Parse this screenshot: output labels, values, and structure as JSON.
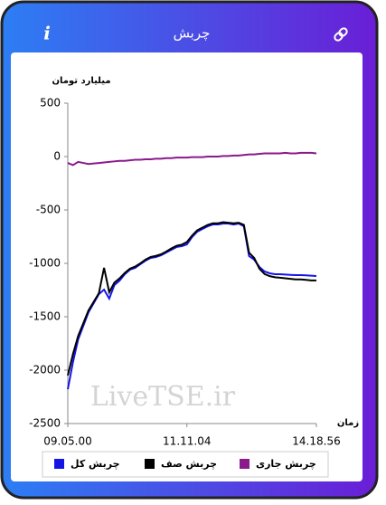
{
  "header": {
    "title": "چربش",
    "info_icon": "i"
  },
  "chart_data": {
    "type": "line",
    "y_label": "میلیارد تومان",
    "x_label": "زمان",
    "watermark": "LiveTSE.ir",
    "categories": [
      "09.05.00",
      null,
      null,
      null,
      null,
      null,
      null,
      null,
      null,
      null,
      null,
      null,
      null,
      null,
      null,
      null,
      null,
      null,
      null,
      null,
      null,
      null,
      null,
      "11.11.04",
      null,
      null,
      null,
      null,
      null,
      null,
      null,
      null,
      null,
      null,
      null,
      null,
      null,
      null,
      null,
      null,
      null,
      null,
      null,
      null,
      null,
      null,
      null,
      null,
      "14.18.56"
    ],
    "series": [
      {
        "name": "چربش کل",
        "color": "#1414e6",
        "values": [
          -2178,
          -1924,
          -1712,
          -1585,
          -1458,
          -1373,
          -1288,
          -1246,
          -1330,
          -1203,
          -1161,
          -1102,
          -1059,
          -1042,
          -1008,
          -975,
          -949,
          -941,
          -924,
          -898,
          -873,
          -847,
          -839,
          -822,
          -754,
          -703,
          -678,
          -653,
          -636,
          -636,
          -627,
          -627,
          -636,
          -627,
          -653,
          -932,
          -966,
          -1034,
          -1076,
          -1093,
          -1102,
          -1102,
          -1105,
          -1108,
          -1110,
          -1110,
          -1112,
          -1115,
          -1119
        ]
      },
      {
        "name": "چربش صف",
        "color": "#000000",
        "values": [
          -2050,
          -1850,
          -1680,
          -1560,
          -1440,
          -1360,
          -1280,
          -1042,
          -1270,
          -1180,
          -1140,
          -1090,
          -1050,
          -1030,
          -1000,
          -965,
          -940,
          -930,
          -915,
          -890,
          -860,
          -835,
          -825,
          -800,
          -740,
          -690,
          -665,
          -640,
          -625,
          -625,
          -615,
          -620,
          -625,
          -620,
          -640,
          -900,
          -950,
          -1050,
          -1100,
          -1120,
          -1130,
          -1135,
          -1140,
          -1145,
          -1150,
          -1150,
          -1155,
          -1160,
          -1160
        ]
      },
      {
        "name": "چربش جاری",
        "color": "#8b1a8b",
        "values": [
          -60,
          -80,
          -50,
          -60,
          -70,
          -65,
          -60,
          -55,
          -50,
          -45,
          -40,
          -40,
          -35,
          -30,
          -30,
          -25,
          -25,
          -20,
          -20,
          -15,
          -15,
          -10,
          -10,
          -10,
          -5,
          -5,
          -5,
          0,
          0,
          0,
          5,
          5,
          10,
          10,
          15,
          20,
          20,
          25,
          30,
          30,
          30,
          30,
          35,
          30,
          30,
          35,
          35,
          35,
          30
        ]
      }
    ],
    "ylim": [
      -2500,
      500
    ],
    "yticks": [
      -2500,
      -2000,
      -1500,
      -1000,
      -500,
      0,
      500
    ],
    "grid": false
  }
}
